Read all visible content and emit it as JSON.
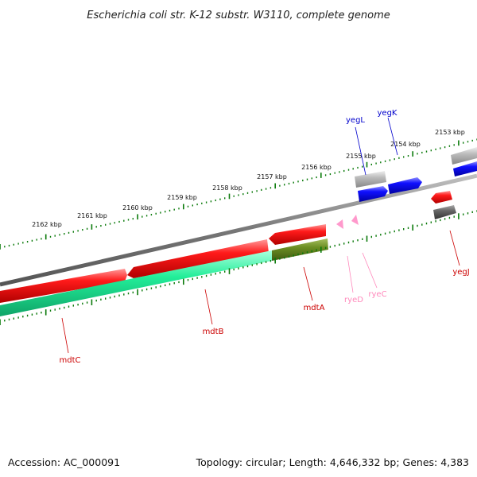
{
  "title": "Escherichia coli str. K-12 substr. W3110, complete genome",
  "footer": {
    "accession": "Accession: AC_000091",
    "summary": "Topology: circular; Length: 4,646,332 bp; Genes: 4,383"
  },
  "colors": {
    "backbone": "#808080",
    "red_gene": "#ee0000",
    "blue_gene": "#0000dd",
    "grey_gene": "#b3b3b3",
    "dark_gene": "#555555",
    "green_gene": "#22ee99",
    "olive_gene": "#6b8e23",
    "pink_rna": "#ff99cc",
    "tick_green": "#0a7a0a",
    "label_red": "#cc0000",
    "label_blue": "#0000cc",
    "label_pink": "#ff88bb"
  },
  "scale_labels": [
    "2162 kbp",
    "2161 kbp",
    "2160 kbp",
    "2159 kbp",
    "2158 kbp",
    "2157 kbp",
    "2156 kbp",
    "2155 kbp",
    "2154 kbp",
    "2153 kbp"
  ],
  "genes": [
    {
      "name": "yegL",
      "color": "label_blue"
    },
    {
      "name": "yegK",
      "color": "label_blue"
    },
    {
      "name": "mdtC",
      "color": "label_red"
    },
    {
      "name": "mdtB",
      "color": "label_red"
    },
    {
      "name": "mdtA",
      "color": "label_red"
    },
    {
      "name": "ryeD",
      "color": "label_pink"
    },
    {
      "name": "ryeC",
      "color": "label_pink"
    },
    {
      "name": "yegJ",
      "color": "label_red"
    }
  ]
}
